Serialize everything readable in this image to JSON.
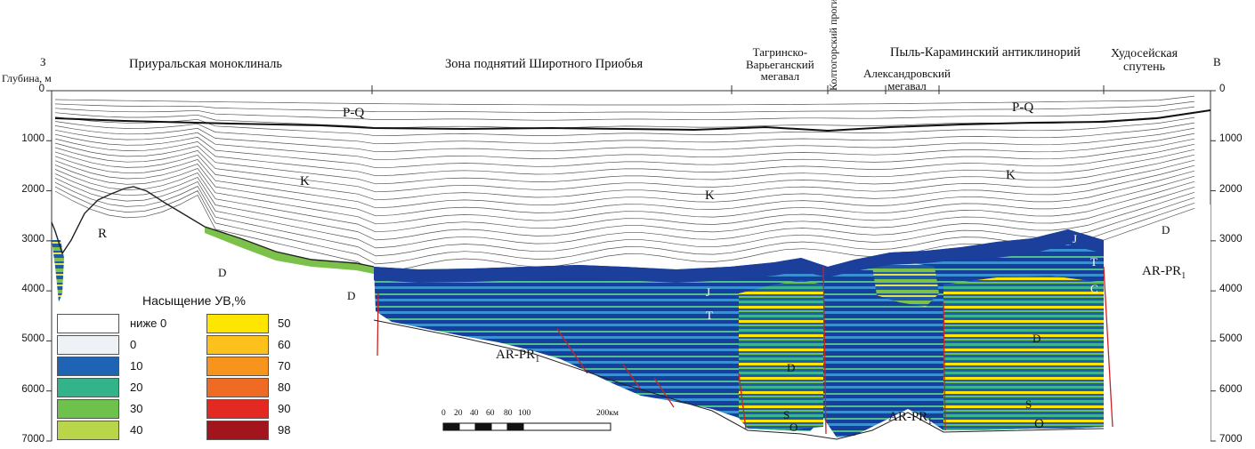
{
  "header": {
    "west_label": "З",
    "east_label": "В",
    "depth_axis_label": "Глубина, м"
  },
  "zones": [
    {
      "id": "priural",
      "label": "Приуральская моноклиналь"
    },
    {
      "id": "shirot",
      "label": "Зона поднятий Широтного Приобья"
    },
    {
      "id": "tagr",
      "label": "Тагринско-Варьеганский мегавал",
      "lines": [
        "Тагринско-",
        "Варьеганский",
        "мегавал"
      ]
    },
    {
      "id": "koltog",
      "label": "Колтогорский прогиб"
    },
    {
      "id": "alex",
      "label": "Александровский мегавал",
      "lines": [
        "Александровский",
        "мегавал"
      ]
    },
    {
      "id": "pyl",
      "label": "Пыль-Караминский антиклинорий"
    },
    {
      "id": "khud",
      "label": "Худосейская спутень",
      "lines": [
        "Худосейская",
        "спутень"
      ]
    }
  ],
  "depth_ticks": [
    "0",
    "1000",
    "2000",
    "3000",
    "4000",
    "5000",
    "6000",
    "7000"
  ],
  "depth_ticks_right": [
    "0",
    "1000",
    "2000",
    "3000",
    "4000",
    "5000",
    "6000",
    "7000"
  ],
  "strat_labels": {
    "pq1": "P-Q",
    "pq2": "P-Q",
    "k1": "K",
    "k2": "K",
    "k3": "K",
    "r": "R",
    "d1": "D",
    "d2": "D",
    "d3": "D",
    "d4": "D",
    "d5": "D",
    "j1": "J",
    "t1": "T",
    "j2": "J",
    "t2": "T",
    "c1": "C",
    "s1": "S",
    "s2": "S",
    "o1": "O",
    "o2": "O",
    "arpr1": "AR-PR",
    "arpr2": "AR-PR",
    "arpr3": "AR-PR",
    "sub": "1"
  },
  "legend": {
    "title": "Насыщение УВ,%",
    "items": [
      {
        "label": "ниже 0",
        "color": "#ffffff"
      },
      {
        "label": "0",
        "color": "#eef2f6"
      },
      {
        "label": "10",
        "color": "#1f64b4"
      },
      {
        "label": "20",
        "color": "#33b38a"
      },
      {
        "label": "30",
        "color": "#6ec14b"
      },
      {
        "label": "40",
        "color": "#b9d64a"
      },
      {
        "label": "50",
        "color": "#ffe600"
      },
      {
        "label": "60",
        "color": "#fcc21b"
      },
      {
        "label": "70",
        "color": "#f7941d"
      },
      {
        "label": "80",
        "color": "#ef6a23"
      },
      {
        "label": "90",
        "color": "#e42822"
      },
      {
        "label": "98",
        "color": "#a3151d"
      }
    ]
  },
  "scale": {
    "ticks": [
      "0",
      "20",
      "40",
      "60",
      "80",
      "100"
    ],
    "end_label": "200км"
  }
}
